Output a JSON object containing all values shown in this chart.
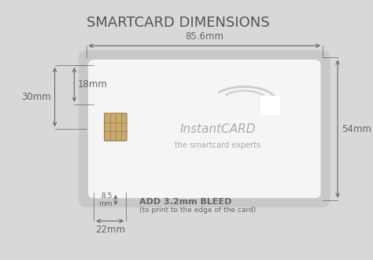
{
  "title": "SMARTCARD DIMENSIONS",
  "bg_color": "#d8d8d8",
  "card_color": "#f5f5f5",
  "card_shadow_color": "#c8c8c8",
  "text_color": "#555555",
  "dim_color": "#666666",
  "chip_color": "#c8a96e",
  "chip_border_color": "#a08050",
  "logo_text1": "InstantCARD",
  "logo_text2": "the smartcard experts",
  "dim_width_label": "85.6mm",
  "dim_height_label": "54mm",
  "dim_30mm": "30mm",
  "dim_18mm": "18mm",
  "dim_85mm": "8.5\nmm",
  "dim_22mm": "22mm",
  "bleed_text1": "ADD 3.2mm BLEED",
  "bleed_text2": "(to print to the edge of the card)"
}
